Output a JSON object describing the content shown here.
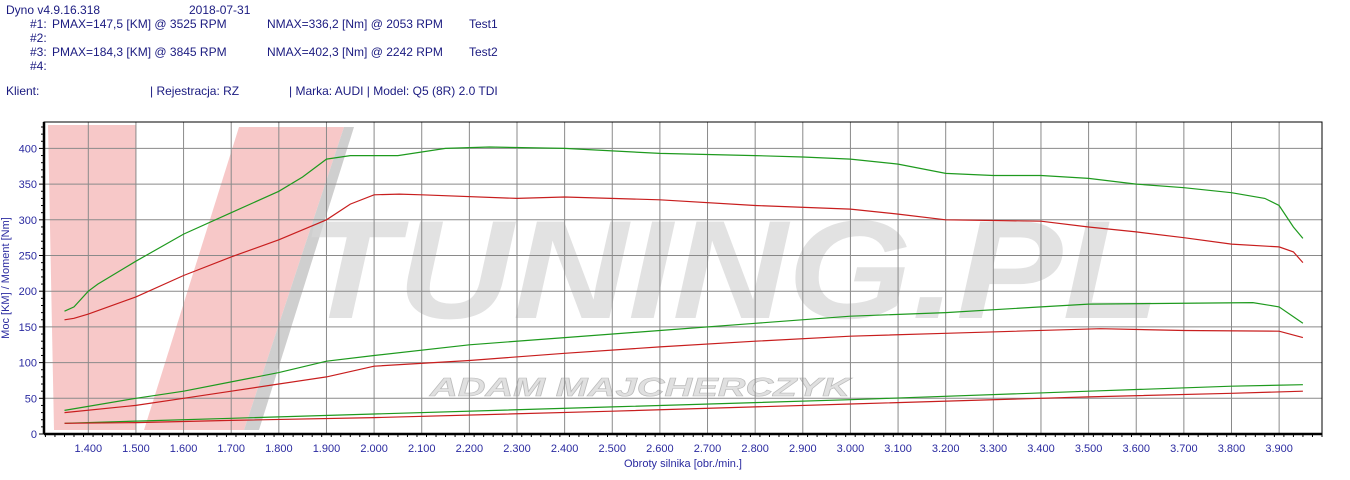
{
  "header": {
    "app_version": "Dyno v4.9.16.318",
    "date": "2018-07-31",
    "runs": [
      {
        "id": "#1:",
        "pmax": "PMAX=147,5 [KM] @ 3525 RPM",
        "nmax": "NMAX=336,2 [Nm] @ 2053 RPM",
        "name": "Test1"
      },
      {
        "id": "#2:",
        "pmax": "",
        "nmax": "",
        "name": ""
      },
      {
        "id": "#3:",
        "pmax": "PMAX=184,3 [KM] @ 3845 RPM",
        "nmax": "NMAX=402,3 [Nm] @ 2242 RPM",
        "name": "Test2"
      },
      {
        "id": "#4:",
        "pmax": "",
        "nmax": "",
        "name": ""
      }
    ],
    "client_label": "Klient:",
    "registration": "| Rejestracja: RZ",
    "vehicle": "| Marka: AUDI | Model: Q5 (8R) 2.0 TDI"
  },
  "watermark": {
    "logo": "V-TUNING.PL",
    "subtitle": "ADAM MAJCHERCZYK"
  },
  "chart_data": {
    "type": "line",
    "xlabel": "Obroty silnika [obr./min.]",
    "ylabel": "Moc [KM] / Moment [Nm]",
    "xlim": [
      1307,
      3990
    ],
    "ylim": [
      0,
      437
    ],
    "xticks": [
      1400,
      1500,
      1600,
      1700,
      1800,
      1900,
      2000,
      2100,
      2200,
      2300,
      2400,
      2500,
      2600,
      2700,
      2800,
      2900,
      3000,
      3100,
      3200,
      3300,
      3400,
      3500,
      3600,
      3700,
      3800,
      3900
    ],
    "xtick_labels": [
      "1.400",
      "1.500",
      "1.600",
      "1.700",
      "1.800",
      "1.900",
      "2.000",
      "2.100",
      "2.200",
      "2.300",
      "2.400",
      "2.500",
      "2.600",
      "2.700",
      "2.800",
      "2.900",
      "3.000",
      "3.100",
      "3.200",
      "3.300",
      "3.400",
      "3.500",
      "3.600",
      "3.700",
      "3.800",
      "3.900"
    ],
    "yticks": [
      0,
      50,
      100,
      150,
      200,
      250,
      300,
      350,
      400
    ],
    "grid": true,
    "series": [
      {
        "test": "Test2",
        "quantity": "torque",
        "color": "#1e9a1e",
        "points": [
          [
            1350,
            172
          ],
          [
            1370,
            178
          ],
          [
            1400,
            200
          ],
          [
            1420,
            210
          ],
          [
            1500,
            242
          ],
          [
            1600,
            280
          ],
          [
            1700,
            310
          ],
          [
            1800,
            340
          ],
          [
            1850,
            360
          ],
          [
            1900,
            385
          ],
          [
            1950,
            390
          ],
          [
            2050,
            390
          ],
          [
            2150,
            400
          ],
          [
            2242,
            402
          ],
          [
            2400,
            400
          ],
          [
            2600,
            393
          ],
          [
            2800,
            390
          ],
          [
            2900,
            388
          ],
          [
            3000,
            385
          ],
          [
            3100,
            378
          ],
          [
            3200,
            365
          ],
          [
            3300,
            362
          ],
          [
            3400,
            362
          ],
          [
            3500,
            358
          ],
          [
            3600,
            350
          ],
          [
            3700,
            345
          ],
          [
            3800,
            338
          ],
          [
            3870,
            330
          ],
          [
            3900,
            320
          ],
          [
            3930,
            290
          ],
          [
            3950,
            274
          ]
        ]
      },
      {
        "test": "Test1",
        "quantity": "torque",
        "color": "#c81e1e",
        "points": [
          [
            1350,
            160
          ],
          [
            1370,
            162
          ],
          [
            1400,
            168
          ],
          [
            1500,
            192
          ],
          [
            1600,
            222
          ],
          [
            1700,
            248
          ],
          [
            1800,
            272
          ],
          [
            1900,
            300
          ],
          [
            1950,
            322
          ],
          [
            2000,
            335
          ],
          [
            2053,
            336
          ],
          [
            2100,
            335
          ],
          [
            2300,
            330
          ],
          [
            2400,
            332
          ],
          [
            2600,
            328
          ],
          [
            2800,
            320
          ],
          [
            3000,
            315
          ],
          [
            3100,
            308
          ],
          [
            3200,
            300
          ],
          [
            3400,
            298
          ],
          [
            3500,
            290
          ],
          [
            3600,
            283
          ],
          [
            3700,
            275
          ],
          [
            3800,
            266
          ],
          [
            3900,
            262
          ],
          [
            3930,
            255
          ],
          [
            3950,
            240
          ]
        ]
      },
      {
        "test": "Test2",
        "quantity": "power",
        "color": "#1e9a1e",
        "points": [
          [
            1350,
            33
          ],
          [
            1500,
            50
          ],
          [
            1600,
            60
          ],
          [
            1700,
            73
          ],
          [
            1800,
            86
          ],
          [
            1900,
            102
          ],
          [
            2000,
            110
          ],
          [
            2200,
            125
          ],
          [
            2400,
            135
          ],
          [
            2600,
            145
          ],
          [
            2800,
            155
          ],
          [
            3000,
            165
          ],
          [
            3200,
            170
          ],
          [
            3400,
            178
          ],
          [
            3500,
            182
          ],
          [
            3845,
            184
          ],
          [
            3900,
            178
          ],
          [
            3950,
            155
          ]
        ]
      },
      {
        "test": "Test1",
        "quantity": "power",
        "color": "#c81e1e",
        "points": [
          [
            1350,
            30
          ],
          [
            1500,
            40
          ],
          [
            1600,
            50
          ],
          [
            1700,
            60
          ],
          [
            1800,
            70
          ],
          [
            1900,
            80
          ],
          [
            2000,
            95
          ],
          [
            2200,
            103
          ],
          [
            2400,
            113
          ],
          [
            2600,
            122
          ],
          [
            2800,
            130
          ],
          [
            3000,
            137
          ],
          [
            3200,
            141
          ],
          [
            3525,
            147.5
          ],
          [
            3700,
            145
          ],
          [
            3900,
            144
          ],
          [
            3950,
            135
          ]
        ]
      },
      {
        "test": "Test2",
        "quantity": "",
        "color": "#1e9a1e",
        "points": [
          [
            1350,
            15
          ],
          [
            1500,
            18
          ],
          [
            1700,
            22
          ],
          [
            2000,
            28
          ],
          [
            2500,
            38
          ],
          [
            3000,
            48
          ],
          [
            3500,
            60
          ],
          [
            3800,
            67
          ],
          [
            3950,
            69
          ]
        ]
      },
      {
        "test": "Test1",
        "quantity": "",
        "color": "#c81e1e",
        "points": [
          [
            1350,
            15
          ],
          [
            1500,
            16
          ],
          [
            1700,
            19
          ],
          [
            2000,
            23
          ],
          [
            2500,
            32
          ],
          [
            3000,
            42
          ],
          [
            3500,
            52
          ],
          [
            3800,
            57
          ],
          [
            3950,
            60
          ]
        ]
      }
    ]
  }
}
